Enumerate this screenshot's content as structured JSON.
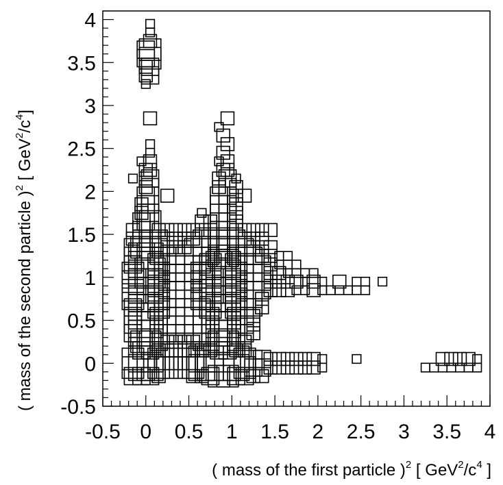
{
  "chart_data": {
    "type": "heatmap",
    "style": "box",
    "xlabel": {
      "pre": "( mass of the first particle )",
      "sup1": "2",
      "mid1": " [ GeV",
      "sup2": "2",
      "mid2": "/c",
      "sup3": "4",
      "post": " ]"
    },
    "ylabel": {
      "pre": "( mass of the second particle )",
      "sup1": "2",
      "mid1": " [ GeV",
      "sup2": "2",
      "mid2": "/c",
      "sup3": "4",
      "post": "]"
    },
    "xlim": [
      -0.5,
      4.0
    ],
    "ylim": [
      -0.5,
      4.1
    ],
    "xticks": [
      "-0.5",
      "0",
      "0.5",
      "1",
      "1.5",
      "2",
      "2.5",
      "3",
      "3.5",
      "4"
    ],
    "yticks": [
      "-0.5",
      "0",
      "0.5",
      "1",
      "1.5",
      "2",
      "2.5",
      "3",
      "3.5",
      "4"
    ],
    "bin_width": 0.05,
    "rows": [
      {
        "y": 3.95,
        "x": [
          0.05
        ],
        "w": [
          0.1
        ]
      },
      {
        "y": 3.85,
        "x": [
          0.05
        ],
        "w": [
          0.1
        ]
      },
      {
        "y": 3.75,
        "x": [
          0.05
        ],
        "w": [
          0.15
        ]
      },
      {
        "y": 3.65,
        "x": [
          0.0,
          0.05
        ],
        "w": [
          0.2,
          0.25
        ]
      },
      {
        "y": 3.55,
        "x": [
          0.0,
          0.05
        ],
        "w": [
          0.2,
          0.25
        ]
      },
      {
        "y": 3.45,
        "x": [
          0.0,
          0.05
        ],
        "w": [
          0.15,
          0.2
        ]
      },
      {
        "y": 3.35,
        "x": [
          0.0,
          0.05
        ],
        "w": [
          0.15,
          0.2
        ]
      },
      {
        "y": 3.25,
        "x": [
          0.0
        ],
        "w": [
          0.1
        ]
      },
      {
        "y": 2.85,
        "x": [
          0.05,
          0.95
        ],
        "w": [
          0.15,
          0.15
        ]
      },
      {
        "y": 2.75,
        "x": [
          0.85
        ],
        "w": [
          0.1
        ]
      },
      {
        "y": 2.65,
        "x": [
          0.9
        ],
        "w": [
          0.15
        ]
      },
      {
        "y": 2.55,
        "x": [
          0.05,
          0.95
        ],
        "w": [
          0.1,
          0.15
        ]
      },
      {
        "y": 2.45,
        "x": [
          0.05,
          0.9
        ],
        "w": [
          0.1,
          0.15
        ]
      },
      {
        "y": 2.35,
        "x": [
          -0.05,
          0.05,
          0.85,
          0.95
        ],
        "w": [
          0.1,
          0.15,
          0.1,
          0.15
        ]
      },
      {
        "y": 2.25,
        "x": [
          0.0,
          0.05,
          0.9,
          0.95
        ],
        "w": [
          0.15,
          0.15,
          0.15,
          0.15
        ]
      },
      {
        "y": 2.15,
        "x": [
          -0.15,
          0.0,
          0.05,
          0.85,
          0.95,
          1.05
        ],
        "w": [
          0.1,
          0.15,
          0.2,
          0.15,
          0.2,
          0.1
        ]
      },
      {
        "y": 2.05,
        "x": [
          0.0,
          0.05,
          0.85,
          0.95,
          1.05
        ],
        "w": [
          0.15,
          0.2,
          0.15,
          0.2,
          0.15
        ]
      },
      {
        "y": 1.95,
        "x": [
          0.0,
          0.05,
          0.25,
          0.85,
          0.95,
          1.05,
          1.15
        ],
        "w": [
          0.2,
          0.2,
          0.15,
          0.2,
          0.2,
          0.15,
          0.15
        ]
      },
      {
        "y": 1.85,
        "x": [
          -0.05,
          0.0,
          0.05,
          0.85,
          0.95,
          1.05
        ],
        "w": [
          0.15,
          0.2,
          0.2,
          0.2,
          0.2,
          0.15
        ]
      },
      {
        "y": 1.75,
        "x": [
          -0.05,
          0.0,
          0.05,
          0.65,
          0.85,
          0.95,
          1.05
        ],
        "w": [
          0.15,
          0.2,
          0.2,
          0.1,
          0.2,
          0.2,
          0.15
        ]
      },
      {
        "y": 1.65,
        "x": [
          -0.05,
          0.0,
          0.05,
          0.65,
          0.75,
          0.85,
          0.95,
          1.05
        ],
        "w": [
          0.2,
          0.2,
          0.25,
          0.15,
          0.15,
          0.2,
          0.2,
          0.15
        ]
      },
      {
        "y": 1.55,
        "x": [
          -0.15,
          -0.05,
          0.05,
          0.15,
          0.25,
          0.35,
          0.45,
          0.55,
          0.65,
          0.75,
          0.85,
          0.95,
          1.05,
          1.15,
          1.25,
          1.35,
          1.45
        ],
        "w": [
          0.15,
          0.2,
          0.2,
          0.15,
          0.15,
          0.15,
          0.15,
          0.15,
          0.15,
          0.15,
          0.2,
          0.2,
          0.15,
          0.15,
          0.15,
          0.15,
          0.15
        ]
      },
      {
        "y": 1.45,
        "x": [
          -0.15,
          -0.05,
          0.05,
          0.15,
          0.25,
          0.35,
          0.45,
          0.55,
          0.65,
          0.75,
          0.85,
          0.95,
          1.05,
          1.15,
          1.25,
          1.35
        ],
        "w": [
          0.15,
          0.2,
          0.2,
          0.2,
          0.15,
          0.15,
          0.15,
          0.15,
          0.2,
          0.2,
          0.25,
          0.25,
          0.2,
          0.15,
          0.15,
          0.15
        ]
      },
      {
        "y": 1.35,
        "x": [
          -0.15,
          -0.05,
          0.05,
          0.15,
          0.25,
          0.35,
          0.45,
          0.55,
          0.65,
          0.75,
          0.85,
          0.95,
          1.05,
          1.15,
          1.25,
          1.35,
          1.45
        ],
        "w": [
          0.2,
          0.25,
          0.25,
          0.2,
          0.15,
          0.15,
          0.15,
          0.2,
          0.2,
          0.2,
          0.25,
          0.25,
          0.2,
          0.2,
          0.15,
          0.15,
          0.15
        ]
      },
      {
        "y": 1.25,
        "x": [
          -0.15,
          -0.05,
          0.05,
          0.15,
          0.25,
          0.35,
          0.45,
          0.55,
          0.65,
          0.75,
          0.85,
          0.95,
          1.05,
          1.15,
          1.25,
          1.35,
          1.45,
          1.55,
          1.65
        ],
        "w": [
          0.2,
          0.3,
          0.3,
          0.2,
          0.2,
          0.2,
          0.2,
          0.2,
          0.2,
          0.2,
          0.25,
          0.25,
          0.2,
          0.2,
          0.2,
          0.15,
          0.15,
          0.1,
          0.1
        ]
      },
      {
        "y": 1.15,
        "x": [
          -0.15,
          -0.05,
          0.05,
          0.15,
          0.25,
          0.35,
          0.45,
          0.55,
          0.65,
          0.75,
          0.85,
          0.95,
          1.05,
          1.15,
          1.25,
          1.35,
          1.45,
          1.55,
          1.65,
          1.75
        ],
        "w": [
          0.2,
          0.3,
          0.3,
          0.25,
          0.2,
          0.2,
          0.2,
          0.2,
          0.2,
          0.25,
          0.3,
          0.3,
          0.25,
          0.2,
          0.2,
          0.2,
          0.15,
          0.1,
          0.1,
          0.1
        ]
      },
      {
        "y": 1.05,
        "x": [
          -0.15,
          -0.05,
          0.05,
          0.15,
          0.25,
          0.35,
          0.45,
          0.55,
          0.65,
          0.75,
          0.85,
          0.95,
          1.05,
          1.15,
          1.25,
          1.35,
          1.45,
          1.55,
          1.65,
          1.75,
          1.85,
          1.95
        ],
        "w": [
          0.25,
          0.3,
          0.35,
          0.25,
          0.2,
          0.2,
          0.2,
          0.2,
          0.25,
          0.25,
          0.3,
          0.3,
          0.25,
          0.2,
          0.2,
          0.2,
          0.15,
          0.15,
          0.1,
          0.1,
          0.1,
          0.1
        ]
      },
      {
        "y": 0.95,
        "x": [
          -0.15,
          -0.05,
          0.05,
          0.15,
          0.25,
          0.35,
          0.45,
          0.55,
          0.65,
          0.75,
          1.05,
          1.15,
          1.25,
          1.35,
          1.45,
          1.55,
          1.65,
          1.75,
          1.85,
          1.95,
          2.05,
          2.25,
          2.45,
          2.55,
          2.75
        ],
        "w": [
          0.25,
          0.3,
          0.3,
          0.25,
          0.2,
          0.2,
          0.2,
          0.2,
          0.25,
          0.25,
          0.25,
          0.2,
          0.2,
          0.2,
          0.15,
          0.15,
          0.15,
          0.15,
          0.1,
          0.15,
          0.1,
          0.15,
          0.1,
          0.1,
          0.1
        ]
      },
      {
        "y": 0.85,
        "x": [
          -0.15,
          0.15,
          0.25,
          0.35,
          0.45,
          0.55,
          0.65,
          0.75,
          1.05,
          1.15,
          1.25,
          1.35,
          1.45,
          1.55,
          1.65,
          1.75,
          1.85,
          1.95,
          2.05,
          2.15,
          2.25,
          2.35,
          2.45,
          2.55
        ],
        "w": [
          0.25,
          0.25,
          0.2,
          0.2,
          0.2,
          0.2,
          0.25,
          0.25,
          0.25,
          0.2,
          0.2,
          0.2,
          0.15,
          0.15,
          0.15,
          0.1,
          0.1,
          0.15,
          0.1,
          0.1,
          0.1,
          0.1,
          0.1,
          0.1
        ]
      },
      {
        "y": 0.75,
        "x": [
          -0.15,
          -0.05,
          0.05,
          0.15,
          0.25,
          0.35,
          0.45,
          0.55,
          0.65,
          0.75,
          0.85,
          0.95,
          1.05,
          1.15,
          1.25,
          1.35
        ],
        "w": [
          0.25,
          0.3,
          0.3,
          0.25,
          0.2,
          0.2,
          0.2,
          0.2,
          0.25,
          0.25,
          0.3,
          0.3,
          0.25,
          0.2,
          0.2,
          0.15
        ]
      },
      {
        "y": 0.65,
        "x": [
          -0.15,
          -0.05,
          0.05,
          0.15,
          0.25,
          0.35,
          0.45,
          0.55,
          0.65,
          0.75,
          0.85,
          0.95,
          1.05,
          1.15,
          1.25,
          1.35
        ],
        "w": [
          0.2,
          0.3,
          0.3,
          0.25,
          0.2,
          0.2,
          0.2,
          0.2,
          0.2,
          0.25,
          0.3,
          0.3,
          0.25,
          0.2,
          0.2,
          0.15
        ]
      },
      {
        "y": 0.55,
        "x": [
          -0.15,
          -0.05,
          0.05,
          0.15,
          0.25,
          0.35,
          0.45,
          0.55,
          0.65,
          0.75,
          0.85,
          0.95,
          1.05,
          1.15,
          1.25
        ],
        "w": [
          0.2,
          0.3,
          0.3,
          0.2,
          0.2,
          0.2,
          0.2,
          0.2,
          0.2,
          0.2,
          0.3,
          0.3,
          0.2,
          0.2,
          0.15
        ]
      },
      {
        "y": 0.45,
        "x": [
          -0.15,
          -0.05,
          0.05,
          0.15,
          0.25,
          0.35,
          0.45,
          0.55,
          0.65,
          0.75,
          0.85,
          0.95,
          1.05,
          1.15,
          1.25
        ],
        "w": [
          0.2,
          0.3,
          0.3,
          0.2,
          0.2,
          0.2,
          0.2,
          0.2,
          0.2,
          0.2,
          0.3,
          0.3,
          0.2,
          0.2,
          0.15
        ]
      },
      {
        "y": 0.35,
        "x": [
          -0.15,
          -0.05,
          0.05,
          0.15,
          0.25,
          0.35,
          0.45,
          0.55,
          0.65,
          0.75,
          0.85,
          0.95,
          1.05,
          1.15,
          1.25
        ],
        "w": [
          0.2,
          0.3,
          0.3,
          0.2,
          0.2,
          0.2,
          0.2,
          0.2,
          0.2,
          0.2,
          0.3,
          0.3,
          0.2,
          0.2,
          0.15
        ]
      },
      {
        "y": 0.25,
        "x": [
          -0.15,
          -0.05,
          0.05,
          0.15,
          0.25,
          0.35,
          0.45,
          0.55,
          0.65,
          0.75,
          0.85,
          0.95,
          1.05,
          1.15
        ],
        "w": [
          0.1,
          0.25,
          0.25,
          0.2,
          0.15,
          0.15,
          0.15,
          0.15,
          0.2,
          0.2,
          0.25,
          0.25,
          0.2,
          0.15
        ]
      },
      {
        "y": 0.15,
        "x": [
          -0.05,
          0.05,
          0.15,
          0.25,
          0.35,
          0.45,
          0.55,
          0.65,
          0.75,
          0.85,
          0.95,
          1.05,
          1.15
        ],
        "w": [
          0.2,
          0.2,
          0.15,
          0.15,
          0.15,
          0.15,
          0.15,
          0.15,
          0.15,
          0.2,
          0.2,
          0.15,
          0.15
        ]
      },
      {
        "y": 0.05,
        "x": [
          -0.15,
          -0.05,
          0.05,
          0.15,
          0.25,
          0.35,
          0.45,
          0.55,
          0.65,
          0.75,
          1.05,
          1.15,
          1.25,
          1.35,
          1.45,
          1.55,
          1.65,
          1.75,
          1.85,
          1.95,
          2.05,
          2.45,
          3.45,
          3.55,
          3.65,
          3.75,
          3.85
        ],
        "w": [
          0.25,
          0.3,
          0.3,
          0.25,
          0.25,
          0.25,
          0.25,
          0.25,
          0.3,
          0.3,
          0.3,
          0.25,
          0.2,
          0.2,
          0.15,
          0.15,
          0.15,
          0.15,
          0.15,
          0.15,
          0.1,
          0.1,
          0.15,
          0.15,
          0.15,
          0.15,
          0.1
        ]
      },
      {
        "y": -0.05,
        "x": [
          -0.15,
          -0.05,
          0.05,
          0.15,
          0.25,
          0.35,
          0.45,
          0.55,
          0.65,
          0.75,
          1.05,
          1.15,
          1.25,
          1.35,
          1.45,
          1.55,
          1.65,
          1.75,
          1.85,
          1.95,
          2.05,
          3.25,
          3.35,
          3.45,
          3.55,
          3.65,
          3.75,
          3.85
        ],
        "w": [
          0.25,
          0.3,
          0.3,
          0.25,
          0.25,
          0.25,
          0.25,
          0.25,
          0.3,
          0.3,
          0.3,
          0.25,
          0.2,
          0.2,
          0.15,
          0.15,
          0.15,
          0.15,
          0.15,
          0.15,
          0.1,
          0.1,
          0.1,
          0.1,
          0.1,
          0.1,
          0.1,
          0.1
        ]
      },
      {
        "y": -0.15,
        "x": [
          -0.15,
          -0.05,
          0.05,
          0.15,
          0.55,
          0.65,
          0.75,
          0.85,
          0.95,
          1.05,
          1.15,
          1.25,
          1.35
        ],
        "w": [
          0.2,
          0.2,
          0.2,
          0.15,
          0.15,
          0.15,
          0.2,
          0.25,
          0.25,
          0.2,
          0.2,
          0.15,
          0.15
        ]
      }
    ],
    "peaks": [
      {
        "x": 0.0,
        "y": 0.9,
        "w": 0.4
      },
      {
        "x": 0.9,
        "y": 0.9,
        "w": 0.4
      },
      {
        "x": 0.9,
        "y": 0.0,
        "w": 0.4
      }
    ]
  }
}
